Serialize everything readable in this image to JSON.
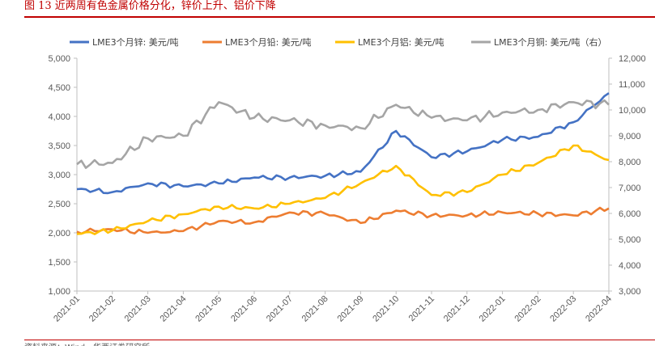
{
  "caption": "图 13 近两周有色金属价格分化，锌价上升、铝价下降",
  "source": "资料来源：Wind，华西证券研究所",
  "chart_data": {
    "type": "line",
    "grid": false,
    "legend_position": "top",
    "x": [
      "2021-01",
      "2021-02",
      "2021-03",
      "2021-04",
      "2021-05",
      "2021-06",
      "2021-07",
      "2021-08",
      "2021-09",
      "2021-10",
      "2021-11",
      "2021-12",
      "2022-01",
      "2022-02",
      "2022-03",
      "2022-04"
    ],
    "left_ticks": [
      "1,000",
      "1,500",
      "2,000",
      "2,500",
      "3,000",
      "3,500",
      "4,000",
      "4,500",
      "5,000"
    ],
    "right_ticks": [
      "3,000",
      "4,000",
      "5,000",
      "6,000",
      "7,000",
      "8,000",
      "9,000",
      "10,000",
      "11,000",
      "12,000"
    ],
    "ylim_left": [
      1000,
      5000
    ],
    "ylim_right": [
      3000,
      12000
    ],
    "series": [
      {
        "name": "LME3个月锌: 美元/吨",
        "axis": "left",
        "color": "#4472c4",
        "values": [
          2750,
          2700,
          2850,
          2800,
          2850,
          2950,
          2950,
          2980,
          3050,
          3750,
          3300,
          3400,
          3600,
          3650,
          3900,
          4400
        ]
      },
      {
        "name": "LME3个月铅: 美元/吨",
        "axis": "left",
        "color": "#ed7d31",
        "values": [
          2020,
          2060,
          2000,
          2030,
          2200,
          2180,
          2350,
          2330,
          2170,
          2380,
          2300,
          2300,
          2350,
          2330,
          2300,
          2420
        ]
      },
      {
        "name": "LME3个月铝: 美元/吨",
        "axis": "left",
        "color": "#ffc000",
        "values": [
          1980,
          2040,
          2200,
          2320,
          2450,
          2420,
          2500,
          2600,
          2850,
          3150,
          2650,
          2700,
          3000,
          3200,
          3500,
          3250
        ]
      },
      {
        "name": "LME3个月铜: 美元/吨（右）",
        "axis": "right",
        "color": "#a5a5a5",
        "values": [
          7900,
          7950,
          8900,
          9000,
          10300,
          9700,
          9600,
          9400,
          9300,
          10200,
          9700,
          9600,
          9900,
          10000,
          10300,
          10200
        ]
      }
    ]
  }
}
